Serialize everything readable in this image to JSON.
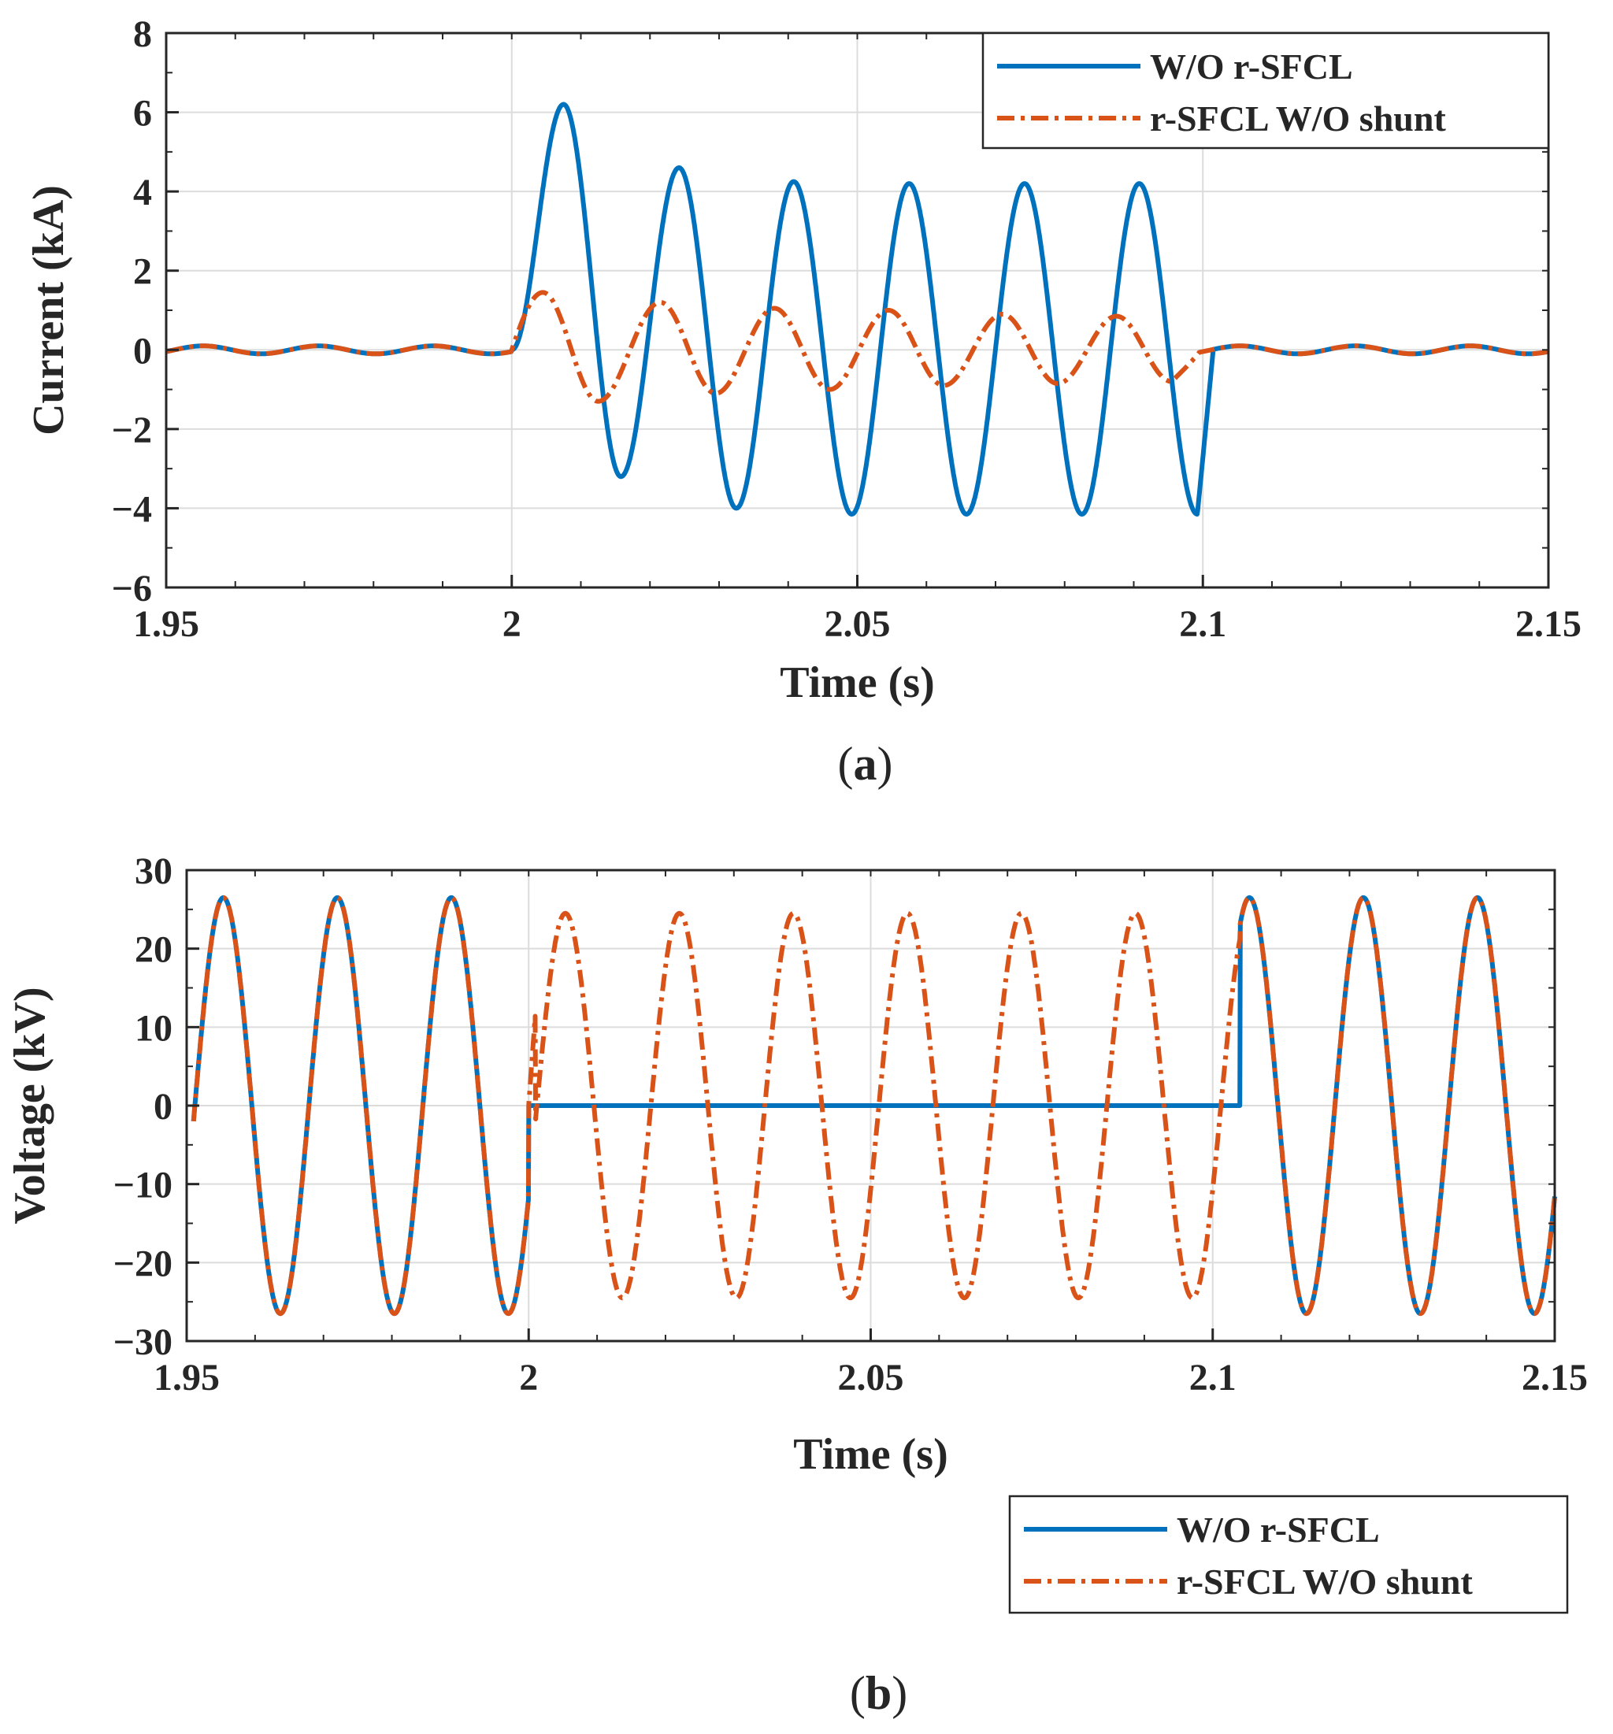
{
  "chart_data": [
    {
      "type": "line",
      "panel": "a",
      "caption_letter": "a",
      "xlabel": "Time (s)",
      "ylabel": "Current (kA)",
      "xlim": [
        1.95,
        2.15
      ],
      "ylim": [
        -6,
        8
      ],
      "xticks": [
        1.95,
        2,
        2.05,
        2.1,
        2.15
      ],
      "xtick_labels": [
        "1.95",
        "2",
        "2.05",
        "2.1",
        "2.15"
      ],
      "yticks": [
        -6,
        -4,
        -2,
        0,
        2,
        4,
        6,
        8
      ],
      "ytick_labels": [
        "−6",
        "−4",
        "−2",
        "0",
        "2",
        "4",
        "6",
        "8"
      ],
      "grid": true,
      "legend_position": "top-right",
      "frequency_hz": 60,
      "fault_start": 2.0,
      "fault_clear_blue": 2.1,
      "fault_clear_orange": 2.097,
      "series": [
        {
          "name": "W/O r-SFCL",
          "color": "#0072BD",
          "style": "solid",
          "prefault_amplitude": 0.1,
          "fault_peaks": [
            {
              "t": 2.0075,
              "v": 6.2
            },
            {
              "t": 2.0158,
              "v": -3.2
            },
            {
              "t": 2.0242,
              "v": 4.6
            },
            {
              "t": 2.0325,
              "v": -4.0
            },
            {
              "t": 2.0408,
              "v": 4.25
            },
            {
              "t": 2.0492,
              "v": -4.15
            },
            {
              "t": 2.0575,
              "v": 4.2
            },
            {
              "t": 2.0658,
              "v": -4.15
            },
            {
              "t": 2.0742,
              "v": 4.2
            },
            {
              "t": 2.0825,
              "v": -4.15
            },
            {
              "t": 2.0908,
              "v": 4.2
            },
            {
              "t": 2.0992,
              "v": -4.15
            }
          ]
        },
        {
          "name": "r-SFCL W/O shunt",
          "color": "#D95319",
          "style": "dashdot",
          "prefault_amplitude": 0.1,
          "fault_peaks": [
            {
              "t": 2.0045,
              "v": 1.45
            },
            {
              "t": 2.0125,
              "v": -1.3
            },
            {
              "t": 2.0215,
              "v": 1.2
            },
            {
              "t": 2.0295,
              "v": -1.1
            },
            {
              "t": 2.038,
              "v": 1.05
            },
            {
              "t": 2.046,
              "v": -1.0
            },
            {
              "t": 2.0545,
              "v": 1.0
            },
            {
              "t": 2.0625,
              "v": -0.9
            },
            {
              "t": 2.071,
              "v": 0.9
            },
            {
              "t": 2.079,
              "v": -0.85
            },
            {
              "t": 2.0875,
              "v": 0.85
            },
            {
              "t": 2.0955,
              "v": -0.8
            }
          ]
        }
      ]
    },
    {
      "type": "line",
      "panel": "b",
      "caption_letter": "b",
      "xlabel": "Time (s)",
      "ylabel": "Voltage (kV)",
      "xlim": [
        1.95,
        2.15
      ],
      "ylim": [
        -30,
        30
      ],
      "xticks": [
        1.95,
        2,
        2.05,
        2.1,
        2.15
      ],
      "xtick_labels": [
        "1.95",
        "2",
        "2.05",
        "2.1",
        "2.15"
      ],
      "yticks": [
        -30,
        -20,
        -10,
        0,
        10,
        20,
        30
      ],
      "ytick_labels": [
        "−30",
        "−20",
        "−10",
        "0",
        "10",
        "20",
        "30"
      ],
      "grid": true,
      "legend_position": "below-right",
      "frequency_hz": 60,
      "fault_start": 2.0,
      "series": [
        {
          "name": "W/O r-SFCL",
          "color": "#0072BD",
          "style": "solid",
          "amplitude": 26.5,
          "fault_value": 0,
          "recovery_time": 2.104
        },
        {
          "name": "r-SFCL W/O shunt",
          "color": "#D95319",
          "style": "dashdot",
          "amplitude": 26.5,
          "fault_amplitude": 24.5,
          "fault_offset": 12
        }
      ]
    }
  ]
}
